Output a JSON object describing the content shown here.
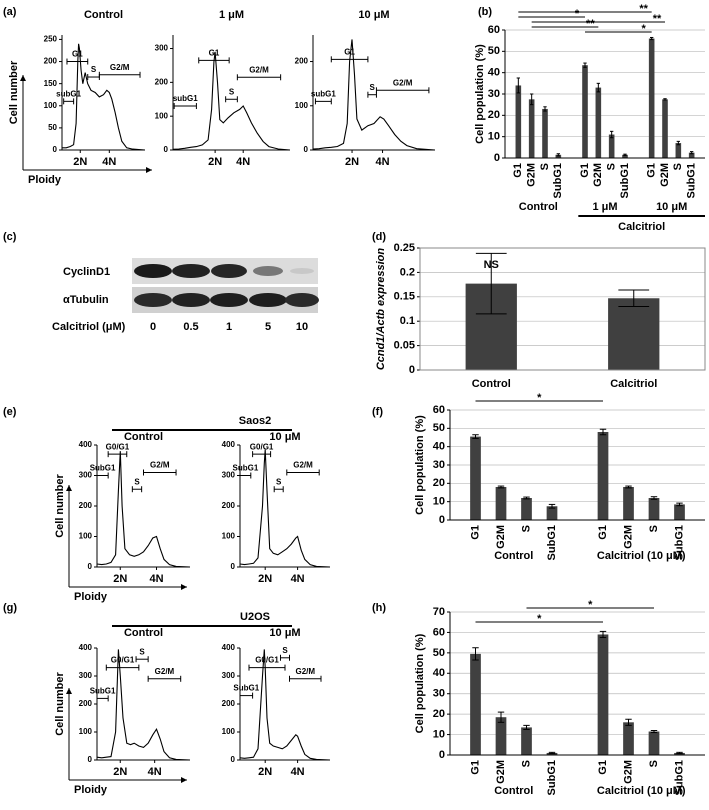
{
  "chart_data": [
    {
      "type": "line",
      "panel": "(a)",
      "title": "Control",
      "ylabel": "Cell number",
      "xlabel": "Ploidy",
      "color": "#000000",
      "x": [
        0,
        5,
        10,
        14,
        17,
        19,
        20,
        21,
        23,
        25,
        28,
        31,
        35,
        40,
        45,
        50,
        54,
        57,
        60,
        64,
        68,
        72,
        78,
        85,
        100
      ],
      "values": [
        5,
        5,
        8,
        12,
        60,
        200,
        240,
        230,
        180,
        150,
        175,
        150,
        135,
        130,
        120,
        125,
        135,
        130,
        115,
        85,
        50,
        20,
        5,
        2,
        0
      ],
      "xlim": [
        0,
        100
      ],
      "ylim": [
        0,
        260
      ],
      "yticks": [
        0,
        50,
        100,
        150,
        200,
        250
      ],
      "xticks": [
        {
          "value": 22,
          "label": "2N"
        },
        {
          "value": 57,
          "label": "4N"
        }
      ],
      "gates": [
        {
          "label": "subG1",
          "x": [
            2,
            14
          ],
          "y": 110
        },
        {
          "label": "G1",
          "x": [
            6,
            31
          ],
          "y": 200
        },
        {
          "label": "S",
          "x": [
            31,
            45
          ],
          "y": 165
        },
        {
          "label": "G2/M",
          "x": [
            45,
            94
          ],
          "y": 170
        }
      ]
    },
    {
      "type": "line",
      "title": "1 μM",
      "color": "#000000",
      "x": [
        0,
        5,
        10,
        15,
        20,
        25,
        30,
        33,
        35,
        36,
        38,
        40,
        43,
        47,
        52,
        57,
        60,
        63,
        67,
        72,
        77,
        82,
        90,
        100
      ],
      "values": [
        2,
        3,
        5,
        8,
        10,
        15,
        30,
        120,
        260,
        290,
        200,
        90,
        80,
        95,
        110,
        120,
        130,
        110,
        80,
        50,
        25,
        10,
        3,
        0
      ],
      "xlim": [
        0,
        100
      ],
      "ylim": [
        0,
        340
      ],
      "yticks": [
        0,
        100,
        200,
        300
      ],
      "xticks": [
        {
          "value": 36,
          "label": "2N"
        },
        {
          "value": 60,
          "label": "4N"
        }
      ],
      "gates": [
        {
          "label": "subG1",
          "x": [
            1,
            20
          ],
          "y": 130
        },
        {
          "label": "G1",
          "x": [
            22,
            48
          ],
          "y": 265
        },
        {
          "label": "S",
          "x": [
            45,
            55
          ],
          "y": 150
        },
        {
          "label": "G2/M",
          "x": [
            55,
            92
          ],
          "y": 215
        }
      ]
    },
    {
      "type": "line",
      "title": "10 μM",
      "color": "#000000",
      "x": [
        0,
        5,
        10,
        15,
        20,
        25,
        28,
        30,
        32,
        34,
        36,
        40,
        45,
        50,
        55,
        58,
        62,
        67,
        72,
        77,
        85,
        100
      ],
      "values": [
        2,
        3,
        5,
        6,
        8,
        15,
        60,
        200,
        250,
        170,
        70,
        45,
        55,
        60,
        75,
        70,
        55,
        35,
        20,
        10,
        3,
        0
      ],
      "xlim": [
        0,
        100
      ],
      "ylim": [
        0,
        260
      ],
      "yticks": [
        0,
        100,
        200
      ],
      "xticks": [
        {
          "value": 32,
          "label": "2N"
        },
        {
          "value": 57,
          "label": "4N"
        }
      ],
      "gates": [
        {
          "label": "subG1",
          "x": [
            2,
            15
          ],
          "y": 110
        },
        {
          "label": "G1",
          "x": [
            15,
            45
          ],
          "y": 205
        },
        {
          "label": "S",
          "x": [
            45,
            52
          ],
          "y": 125
        },
        {
          "label": "G2/M",
          "x": [
            52,
            95
          ],
          "y": 135
        }
      ]
    },
    {
      "type": "bar",
      "panel": "(b)",
      "ylabel": "Cell population (%)",
      "color": "#404040",
      "grid": true,
      "ylim": [
        0,
        60
      ],
      "yticks": [
        0,
        10,
        20,
        30,
        40,
        50,
        60
      ],
      "groups": [
        {
          "label": "Control",
          "categories": [
            "G1",
            "G2M",
            "S",
            "SubG1"
          ],
          "values": [
            34,
            27.5,
            23,
            1.5
          ],
          "errors": [
            3.5,
            2.5,
            1,
            0.5
          ]
        },
        {
          "label": "1 μM",
          "categories": [
            "G1",
            "G2M",
            "S",
            "SubG1"
          ],
          "values": [
            43.5,
            33,
            11,
            1.5
          ],
          "errors": [
            1,
            2,
            1.5,
            0.3
          ]
        },
        {
          "label": "10 μM",
          "categories": [
            "G1",
            "G2M",
            "S",
            "SubG1"
          ],
          "values": [
            56,
            27.5,
            7,
            2.5
          ],
          "errors": [
            0.5,
            0.3,
            0.8,
            0.5
          ]
        }
      ],
      "bracket": {
        "label": "Calcitriol",
        "groups": [
          1,
          2
        ]
      },
      "significance": [
        {
          "from": [
            0,
            0
          ],
          "to": [
            2,
            0
          ],
          "label": "**"
        },
        {
          "from": [
            0,
            0
          ],
          "to": [
            1,
            0
          ],
          "label": "*"
        },
        {
          "from": [
            0,
            1
          ],
          "to": [
            2,
            1
          ],
          "label": "**"
        },
        {
          "from": [
            0,
            1
          ],
          "to": [
            1,
            1
          ],
          "label": "**"
        },
        {
          "from": [
            1,
            0
          ],
          "to": [
            2,
            0
          ],
          "label": "*"
        }
      ]
    },
    {
      "type": "bar",
      "panel": "(d)",
      "ylabel": "Ccnd1/Actb expression",
      "color": "#404040",
      "grid": true,
      "categories": [
        "Control",
        "Calcitriol"
      ],
      "values": [
        0.177,
        0.147
      ],
      "errors": [
        0.062,
        0.017
      ],
      "ylim": [
        0,
        0.25
      ],
      "yticks": [
        0,
        0.05,
        0.1,
        0.15,
        0.2,
        0.25
      ],
      "annotation": "NS"
    },
    {
      "type": "line",
      "panel": "(e)",
      "group_title": "Saos2",
      "title": "Control",
      "ylabel": "Cell number",
      "xlabel": "Ploidy",
      "color": "#000000",
      "x": [
        0,
        5,
        10,
        15,
        20,
        23,
        25,
        27,
        30,
        35,
        40,
        45,
        50,
        55,
        60,
        64,
        68,
        72,
        78,
        85,
        100
      ],
      "values": [
        10,
        8,
        10,
        15,
        40,
        250,
        380,
        200,
        60,
        40,
        35,
        40,
        50,
        70,
        95,
        100,
        60,
        25,
        8,
        2,
        0
      ],
      "xlim": [
        0,
        100
      ],
      "ylim": [
        0,
        400
      ],
      "yticks": [
        0,
        100,
        200,
        300,
        400
      ],
      "xticks": [
        {
          "value": 25,
          "label": "2N"
        },
        {
          "value": 64,
          "label": "4N"
        }
      ],
      "gates": [
        {
          "label": "SubG1",
          "x": [
            0,
            12
          ],
          "y": 300
        },
        {
          "label": "G0/G1",
          "x": [
            12,
            32
          ],
          "y": 370
        },
        {
          "label": "S",
          "x": [
            38,
            48
          ],
          "y": 255
        },
        {
          "label": "G2/M",
          "x": [
            50,
            85
          ],
          "y": 310
        }
      ]
    },
    {
      "type": "line",
      "title": "10 μM",
      "color": "#000000",
      "x": [
        0,
        5,
        10,
        15,
        20,
        25,
        27,
        28,
        30,
        33,
        37,
        42,
        47,
        52,
        57,
        62,
        64,
        68,
        72,
        78,
        85,
        100
      ],
      "values": [
        10,
        8,
        10,
        12,
        30,
        200,
        340,
        385,
        250,
        60,
        45,
        40,
        50,
        60,
        75,
        95,
        100,
        55,
        25,
        8,
        2,
        0
      ],
      "xlim": [
        0,
        100
      ],
      "ylim": [
        0,
        400
      ],
      "yticks": [
        0,
        100,
        200,
        300,
        400
      ],
      "xticks": [
        {
          "value": 28,
          "label": "2N"
        },
        {
          "value": 64,
          "label": "4N"
        }
      ],
      "gates": [
        {
          "label": "SubG1",
          "x": [
            0,
            12
          ],
          "y": 300
        },
        {
          "label": "G0/G1",
          "x": [
            14,
            34
          ],
          "y": 370
        },
        {
          "label": "S",
          "x": [
            38,
            48
          ],
          "y": 255
        },
        {
          "label": "G2/M",
          "x": [
            52,
            88
          ],
          "y": 310
        }
      ]
    },
    {
      "type": "bar",
      "panel": "(f)",
      "ylabel": "Cell population (%)",
      "color": "#404040",
      "grid": true,
      "ylim": [
        0,
        60
      ],
      "yticks": [
        0,
        10,
        20,
        30,
        40,
        50,
        60
      ],
      "groups": [
        {
          "label": "Control",
          "categories": [
            "G1",
            "G2M",
            "S",
            "SubG1"
          ],
          "values": [
            45.5,
            18,
            12,
            7.5
          ],
          "errors": [
            1,
            0.5,
            0.5,
            1
          ]
        },
        {
          "label": "Calcitriol (10 μM)",
          "categories": [
            "G1",
            "G2M",
            "S",
            "SubG1"
          ],
          "values": [
            48,
            18,
            12,
            8.5
          ],
          "errors": [
            1.5,
            0.5,
            0.7,
            0.7
          ]
        }
      ],
      "significance": [
        {
          "from": [
            0,
            0
          ],
          "to": [
            1,
            0
          ],
          "label": "*"
        }
      ]
    },
    {
      "type": "line",
      "panel": "(g)",
      "group_title": "U2OS",
      "title": "Control",
      "ylabel": "Cell number",
      "xlabel": "Ploidy",
      "color": "#000000",
      "x": [
        0,
        5,
        10,
        15,
        20,
        23,
        25,
        28,
        32,
        36,
        40,
        45,
        50,
        55,
        60,
        64,
        68,
        72,
        78,
        85,
        100
      ],
      "values": [
        10,
        8,
        10,
        12,
        100,
        395,
        300,
        150,
        60,
        55,
        60,
        50,
        45,
        60,
        90,
        110,
        75,
        30,
        8,
        2,
        0
      ],
      "xlim": [
        0,
        100
      ],
      "ylim": [
        0,
        400
      ],
      "yticks": [
        0,
        100,
        200,
        300,
        400
      ],
      "xticks": [
        {
          "value": 25,
          "label": "2N"
        },
        {
          "value": 62,
          "label": "4N"
        }
      ],
      "gates": [
        {
          "label": "SubG1",
          "x": [
            0,
            12
          ],
          "y": 220
        },
        {
          "label": "G0/G1",
          "x": [
            10,
            45
          ],
          "y": 330
        },
        {
          "label": "S",
          "x": [
            42,
            55
          ],
          "y": 360
        },
        {
          "label": "G2/M",
          "x": [
            55,
            90
          ],
          "y": 290
        }
      ]
    },
    {
      "type": "line",
      "title": "10 μM",
      "color": "#000000",
      "x": [
        0,
        5,
        10,
        15,
        20,
        25,
        27,
        28,
        30,
        33,
        37,
        42,
        47,
        52,
        57,
        62,
        64,
        68,
        72,
        78,
        85,
        100
      ],
      "values": [
        8,
        6,
        8,
        10,
        40,
        300,
        395,
        330,
        150,
        60,
        50,
        45,
        40,
        50,
        70,
        90,
        85,
        50,
        20,
        6,
        2,
        0
      ],
      "xlim": [
        0,
        100
      ],
      "ylim": [
        0,
        400
      ],
      "yticks": [
        0,
        100,
        200,
        300,
        400
      ],
      "xticks": [
        {
          "value": 28,
          "label": "2N"
        },
        {
          "value": 64,
          "label": "4N"
        }
      ],
      "gates": [
        {
          "label": "SubG1",
          "x": [
            0,
            14
          ],
          "y": 230
        },
        {
          "label": "G0/G1",
          "x": [
            10,
            50
          ],
          "y": 330
        },
        {
          "label": "S",
          "x": [
            45,
            55
          ],
          "y": 365
        },
        {
          "label": "G2/M",
          "x": [
            55,
            90
          ],
          "y": 290
        }
      ]
    },
    {
      "type": "bar",
      "panel": "(h)",
      "ylabel": "Cell population (%)",
      "color": "#404040",
      "grid": true,
      "ylim": [
        0,
        70
      ],
      "yticks": [
        0,
        10,
        20,
        30,
        40,
        50,
        60,
        70
      ],
      "groups": [
        {
          "label": "Control",
          "categories": [
            "G1",
            "G2M",
            "S",
            "SubG1"
          ],
          "values": [
            49.5,
            18.5,
            13.5,
            1
          ],
          "errors": [
            3,
            2.5,
            1,
            0.3
          ]
        },
        {
          "label": "Calcitriol (10 μM)",
          "categories": [
            "G1",
            "G2M",
            "S",
            "SubG1"
          ],
          "values": [
            59,
            16,
            11.5,
            1
          ],
          "errors": [
            1.5,
            1.5,
            0.5,
            0.3
          ]
        }
      ],
      "significance": [
        {
          "from": [
            0,
            0
          ],
          "to": [
            1,
            0
          ],
          "label": "*"
        },
        {
          "from": [
            0,
            2
          ],
          "to": [
            1,
            2
          ],
          "label": "*"
        }
      ]
    }
  ],
  "blot": {
    "panel": "(c)",
    "rows": [
      "CyclinD1",
      "αTubulin"
    ],
    "xlabel": "Calcitriol (μM)",
    "doses": [
      0,
      0.5,
      1,
      5,
      10
    ]
  }
}
